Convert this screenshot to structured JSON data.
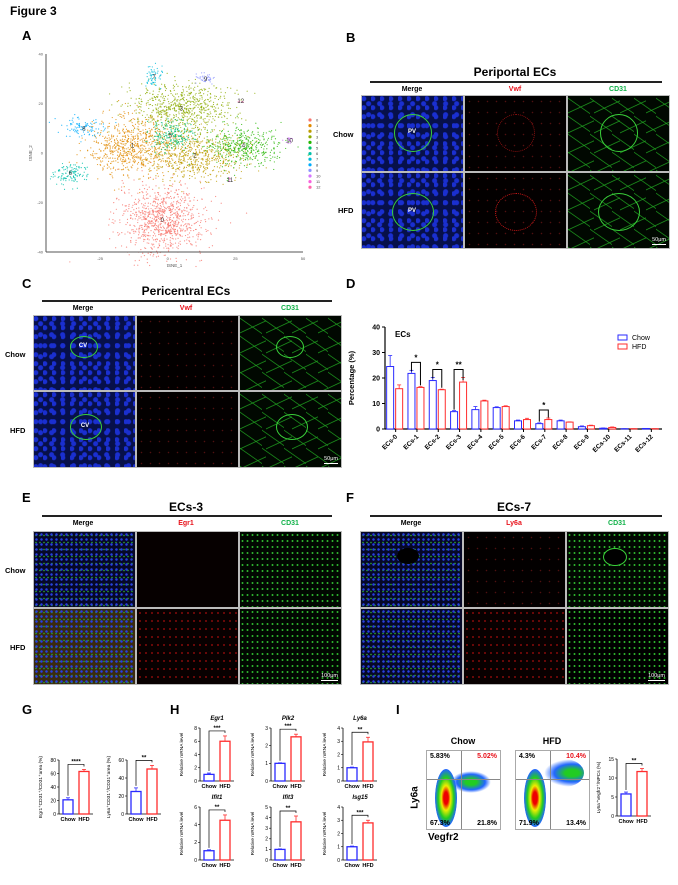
{
  "figure_title": "Figure 3",
  "panels": {
    "A": {
      "label": "A"
    },
    "B": {
      "label": "B",
      "title": "Periportal ECs",
      "columns": [
        "Merge",
        "Vwf",
        "CD31"
      ],
      "rows": [
        "Chow",
        "HFD"
      ],
      "vessel": "PV",
      "scale": "50μm"
    },
    "C": {
      "label": "C",
      "title": "Pericentral ECs",
      "columns": [
        "Merge",
        "Vwf",
        "CD31"
      ],
      "rows": [
        "Chow",
        "HFD"
      ],
      "vessel": "CV",
      "scale": "50μm"
    },
    "D": {
      "label": "D"
    },
    "E": {
      "label": "E",
      "title": "ECs-3",
      "columns": [
        "Merge",
        "Egr1",
        "CD31"
      ],
      "rows": [
        "Chow",
        "HFD"
      ],
      "scale": "100μm"
    },
    "F": {
      "label": "F",
      "title": "ECs-7",
      "columns": [
        "Merge",
        "Ly6a",
        "CD31"
      ],
      "rows": [
        "Chow",
        "HFD"
      ],
      "scale": "100μm"
    },
    "G": {
      "label": "G"
    },
    "H": {
      "label": "H"
    },
    "I": {
      "label": "I",
      "flow": {
        "ylabel": "Ly6a",
        "xlabel": "Vegfr2",
        "samples": [
          {
            "name": "Chow",
            "ul": "5.83%",
            "ur": "5.02%",
            "ll": "67.3%",
            "lr": "21.8%"
          },
          {
            "name": "HFD",
            "ul": "4.3%",
            "ur": "10.4%",
            "ll": "71.9%",
            "lr": "13.4%"
          }
        ]
      }
    }
  },
  "colors": {
    "chow": "#2a2aff",
    "hfd": "#ff2d2d"
  },
  "chart_data": [
    {
      "id": "tsne",
      "type": "scatter",
      "xlabel": "tSNE_1",
      "ylabel": "tSNE_2",
      "xlim": [
        -45,
        50
      ],
      "ylim": [
        -40,
        40
      ],
      "xticks": [
        -25,
        0,
        25,
        50
      ],
      "yticks": [
        -40,
        -20,
        0,
        20,
        40
      ],
      "legend": "right",
      "clusters": [
        {
          "name": "0",
          "color": "#f8766d",
          "cx": -2,
          "cy": -27,
          "sx": 8,
          "sy": 7,
          "n": 900
        },
        {
          "name": "1",
          "color": "#e18a00",
          "cx": -13,
          "cy": 3,
          "sx": 8,
          "sy": 6,
          "n": 700
        },
        {
          "name": "2",
          "color": "#be9c00",
          "cx": 10,
          "cy": -1,
          "sx": 9,
          "sy": 5,
          "n": 650
        },
        {
          "name": "3",
          "color": "#8cab00",
          "cx": 5,
          "cy": 18,
          "sx": 9,
          "sy": 5,
          "n": 650
        },
        {
          "name": "4",
          "color": "#24b700",
          "cx": 28,
          "cy": 3,
          "sx": 7,
          "sy": 4,
          "n": 400
        },
        {
          "name": "5",
          "color": "#00be70",
          "cx": 1,
          "cy": 7,
          "sx": 4,
          "sy": 3,
          "n": 200
        },
        {
          "name": "6",
          "color": "#00c1ab",
          "cx": -36,
          "cy": -8,
          "sx": 3,
          "sy": 2.5,
          "n": 120
        },
        {
          "name": "7",
          "color": "#00bbda",
          "cx": -5,
          "cy": 31,
          "sx": 2,
          "sy": 2,
          "n": 60
        },
        {
          "name": "8",
          "color": "#00acfc",
          "cx": -31,
          "cy": 10,
          "sx": 4,
          "sy": 2,
          "n": 100
        },
        {
          "name": "9",
          "color": "#8b93ff",
          "cx": 14,
          "cy": 30,
          "sx": 2,
          "sy": 1,
          "n": 40
        },
        {
          "name": "10",
          "color": "#d575fe",
          "cx": 45,
          "cy": 5,
          "sx": 1,
          "sy": 0.6,
          "n": 15
        },
        {
          "name": "11",
          "color": "#f962dd",
          "cx": 23,
          "cy": -11,
          "sx": 0.5,
          "sy": 0.5,
          "n": 4
        },
        {
          "name": "12",
          "color": "#ff65ac",
          "cx": 27,
          "cy": 21,
          "sx": 0.5,
          "sy": 0.5,
          "n": 4
        }
      ]
    },
    {
      "id": "D",
      "type": "bar",
      "title": "ECs",
      "ylabel": "Percentage (%)",
      "ylim": [
        0,
        40
      ],
      "yticks": [
        0,
        10,
        20,
        30,
        40
      ],
      "legend": "top-right",
      "categories": [
        "ECs-0",
        "ECs-1",
        "ECs-2",
        "ECs-3",
        "ECs-4",
        "ECs-5",
        "ECs-6",
        "ECs-7",
        "ECs-8",
        "ECs-9",
        "ECs-10",
        "ECs-11",
        "ECs-12"
      ],
      "series": [
        {
          "name": "Chow",
          "values": [
            24.5,
            21.8,
            19.0,
            6.8,
            7.6,
            8.4,
            3.2,
            2.1,
            3.2,
            0.9,
            0.3,
            0.1,
            0.2
          ],
          "errors": [
            4.3,
            1.2,
            1.2,
            0.4,
            1.2,
            0.3,
            0.3,
            0.3,
            0.3,
            0.3,
            0.1,
            0,
            0
          ]
        },
        {
          "name": "HFD",
          "values": [
            15.8,
            16.3,
            15.4,
            18.4,
            11.0,
            8.8,
            3.7,
            3.7,
            2.7,
            1.3,
            0.6,
            0.1,
            0.1
          ],
          "errors": [
            1.5,
            0.3,
            0.2,
            1.8,
            0.3,
            0.3,
            0.5,
            0.6,
            0.1,
            0.2,
            0.2,
            0,
            0
          ]
        }
      ],
      "significance": [
        {
          "category": "ECs-1",
          "label": "*"
        },
        {
          "category": "ECs-2",
          "label": "*"
        },
        {
          "category": "ECs-3",
          "label": "**"
        },
        {
          "category": "ECs-7",
          "label": "*"
        }
      ]
    },
    {
      "id": "G1",
      "type": "bar",
      "ylabel": "Egr1⁺CD31⁺/CD31⁺area (%)",
      "ylim": [
        0,
        80
      ],
      "yticks": [
        0,
        20,
        40,
        60,
        80
      ],
      "categories": [
        "Chow",
        "HFD"
      ],
      "values": [
        21,
        63
      ],
      "errors": [
        3,
        3
      ],
      "sig": "****"
    },
    {
      "id": "G2",
      "type": "bar",
      "ylabel": "Ly6a⁺CD31⁺/CD31⁺area (%)",
      "ylim": [
        0,
        60
      ],
      "yticks": [
        0,
        20,
        40,
        60
      ],
      "categories": [
        "Chow",
        "HFD"
      ],
      "values": [
        25,
        50
      ],
      "errors": [
        4,
        4
      ],
      "sig": "**"
    },
    {
      "id": "H1",
      "type": "bar",
      "title": "Egr1",
      "ylabel": "Relative mRNA level",
      "ylim": [
        0,
        8
      ],
      "yticks": [
        0,
        2,
        4,
        6,
        8
      ],
      "categories": [
        "Chow",
        "HFD"
      ],
      "values": [
        1.0,
        6.0
      ],
      "errors": [
        0.2,
        0.8
      ],
      "sig": "***"
    },
    {
      "id": "H2",
      "type": "bar",
      "title": "Plk2",
      "ylabel": "Relative mRNA level",
      "ylim": [
        0,
        3
      ],
      "yticks": [
        0,
        1,
        2,
        3
      ],
      "categories": [
        "Chow",
        "HFD"
      ],
      "values": [
        1.0,
        2.5
      ],
      "errors": [
        0.03,
        0.15
      ],
      "sig": "***"
    },
    {
      "id": "H3",
      "type": "bar",
      "title": "Ly6a",
      "ylabel": "Relative mRNA level",
      "ylim": [
        0,
        4
      ],
      "yticks": [
        0,
        1,
        2,
        3,
        4
      ],
      "categories": [
        "Chow",
        "HFD"
      ],
      "values": [
        1.0,
        2.95
      ],
      "errors": [
        0.05,
        0.35
      ],
      "sig": "**"
    },
    {
      "id": "H4",
      "type": "bar",
      "title": "Ifit1",
      "ylabel": "Relative mRNA level",
      "ylim": [
        0,
        6
      ],
      "yticks": [
        0,
        2,
        4,
        6
      ],
      "categories": [
        "Chow",
        "HFD"
      ],
      "values": [
        1.05,
        4.5
      ],
      "errors": [
        0.1,
        0.6
      ],
      "sig": "**"
    },
    {
      "id": "H5",
      "type": "bar",
      "title": "Ifit3",
      "ylabel": "Relative mRNA level",
      "ylim": [
        0,
        5
      ],
      "yticks": [
        0,
        1,
        2,
        3,
        4,
        5
      ],
      "categories": [
        "Chow",
        "HFD"
      ],
      "values": [
        1.0,
        3.6
      ],
      "errors": [
        0.05,
        0.55
      ],
      "sig": "**"
    },
    {
      "id": "H6",
      "type": "bar",
      "title": "Isg15",
      "ylabel": "Relative mRNA level",
      "ylim": [
        0,
        4
      ],
      "yticks": [
        0,
        1,
        2,
        3,
        4
      ],
      "categories": [
        "Chow",
        "HFD"
      ],
      "values": [
        1.0,
        2.8
      ],
      "errors": [
        0.05,
        0.2
      ],
      "sig": "***"
    },
    {
      "id": "I",
      "type": "bar",
      "ylabel": "Ly6a⁺Vegfr2⁺/NPCs (%)",
      "ylim": [
        0,
        15
      ],
      "yticks": [
        0,
        5,
        10,
        15
      ],
      "categories": [
        "Chow",
        "HFD"
      ],
      "values": [
        5.8,
        11.7
      ],
      "errors": [
        0.5,
        0.8
      ],
      "sig": "**"
    }
  ]
}
